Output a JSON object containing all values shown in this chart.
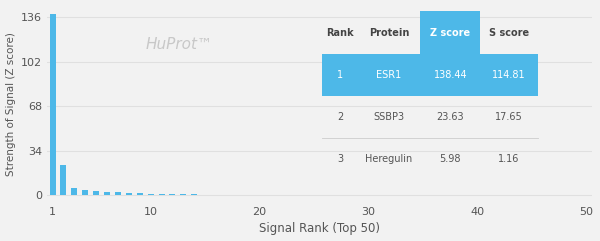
{
  "title": "HuProt™",
  "xlabel": "Signal Rank (Top 50)",
  "ylabel": "Strength of Signal (Z score)",
  "xlim": [
    0,
    50
  ],
  "ylim": [
    -5,
    145
  ],
  "yticks": [
    0,
    34,
    68,
    102,
    136
  ],
  "xticks": [
    1,
    10,
    20,
    30,
    40,
    50
  ],
  "bar_color": "#4db8e8",
  "background_color": "#f2f2f2",
  "bar_data": {
    "ranks": [
      1,
      2,
      3,
      4,
      5,
      6,
      7,
      8,
      9,
      10,
      11,
      12,
      13,
      14,
      15,
      16,
      17,
      18,
      19,
      20,
      21,
      22,
      23,
      24,
      25,
      26,
      27,
      28,
      29,
      30,
      31,
      32,
      33,
      34,
      35,
      36,
      37,
      38,
      39,
      40,
      41,
      42,
      43,
      44,
      45,
      46,
      47,
      48,
      49,
      50
    ],
    "z_scores": [
      138.44,
      23.63,
      5.98,
      4.2,
      3.4,
      2.8,
      2.3,
      1.9,
      1.6,
      1.3,
      1.1,
      0.95,
      0.85,
      0.75,
      0.65,
      0.58,
      0.52,
      0.47,
      0.43,
      0.39,
      0.36,
      0.33,
      0.3,
      0.27,
      0.25,
      0.23,
      0.21,
      0.19,
      0.17,
      0.16,
      0.14,
      0.13,
      0.12,
      0.11,
      0.1,
      0.09,
      0.08,
      0.07,
      0.06,
      0.06,
      0.05,
      0.05,
      0.04,
      0.04,
      0.03,
      0.03,
      0.02,
      0.02,
      0.01,
      0.01
    ]
  },
  "table": {
    "header": [
      "Rank",
      "Protein",
      "Z score",
      "S score"
    ],
    "rows": [
      [
        "1",
        "ESR1",
        "138.44",
        "114.81"
      ],
      [
        "2",
        "SSBP3",
        "23.63",
        "17.65"
      ],
      [
        "3",
        "Heregulin",
        "5.98",
        "1.16"
      ]
    ],
    "highlight_row": 0,
    "highlight_color": "#4db8e8",
    "text_color_highlight": "#ffffff",
    "text_color_normal": "#555555",
    "header_text_color": "#444444"
  },
  "watermark_color": "#c8c8c8",
  "watermark_fontsize": 11,
  "grid_color": "#e0e0e0"
}
